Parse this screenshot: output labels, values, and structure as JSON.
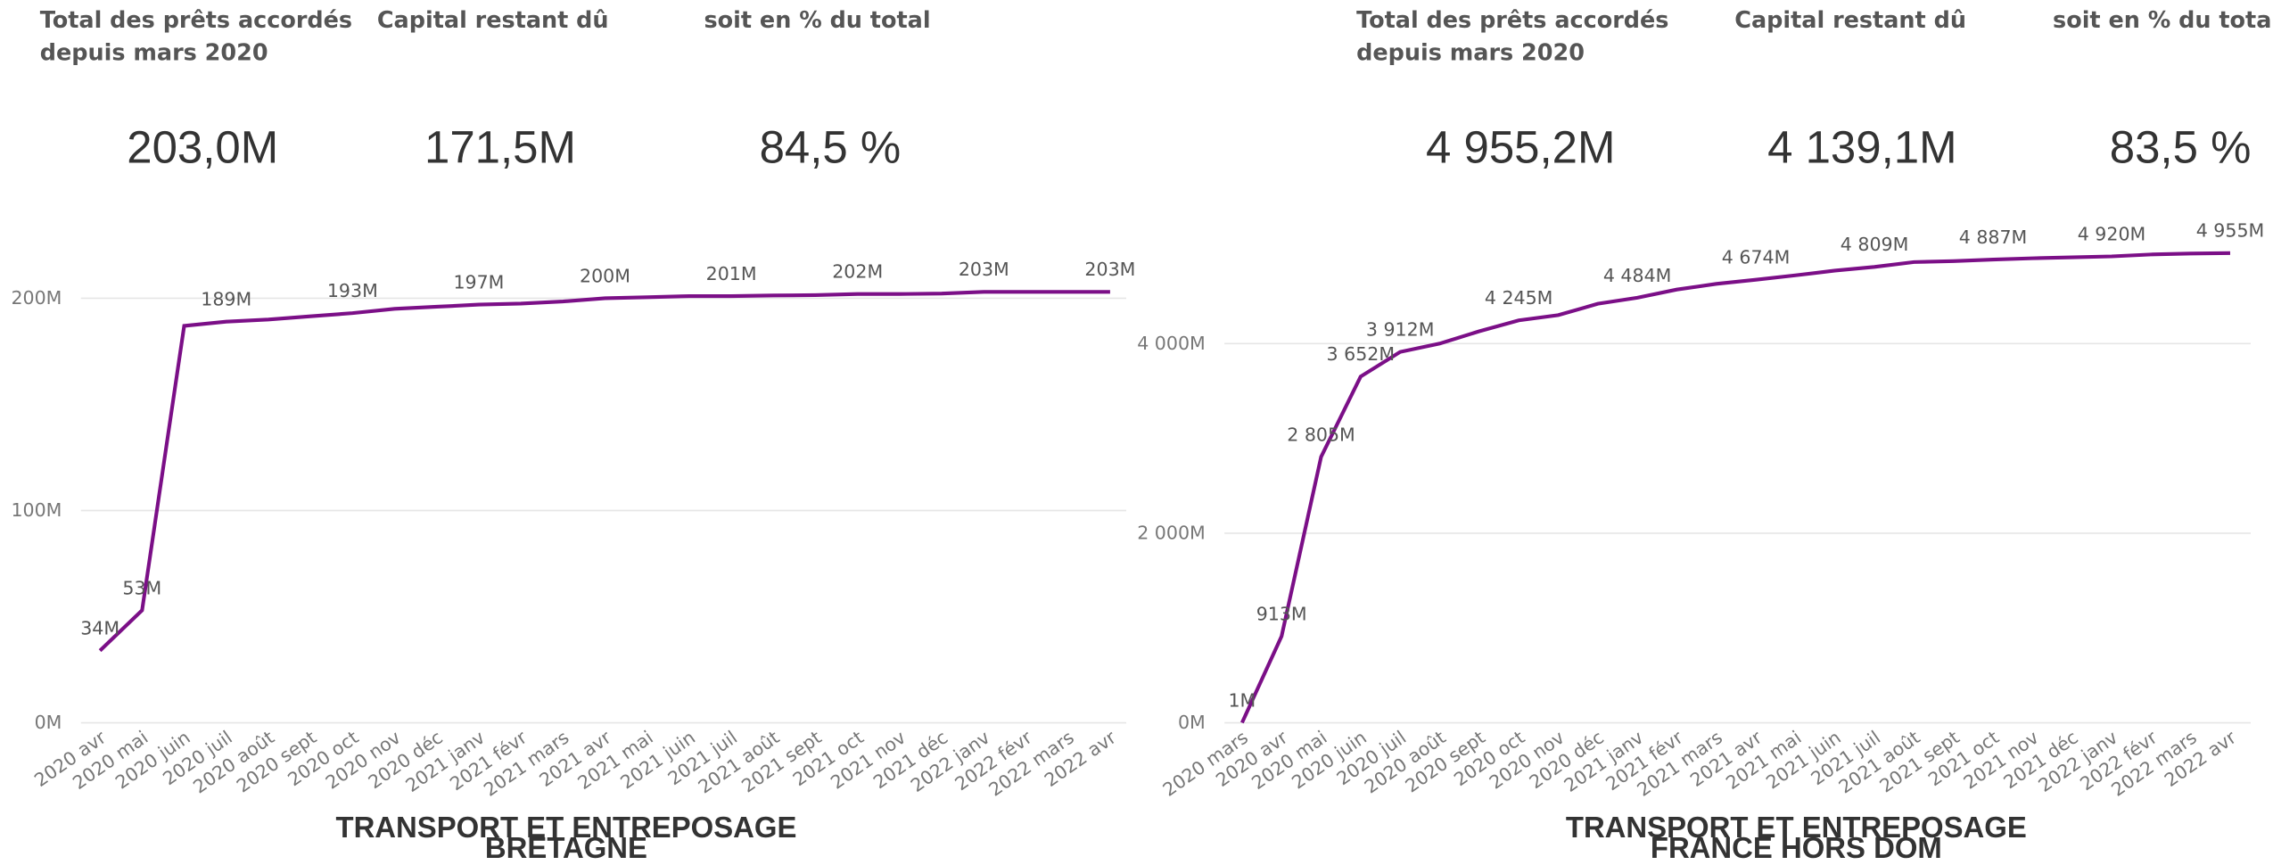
{
  "kpis": [
    [
      {
        "label_lines": [
          "Total des prêts accordés",
          "depuis mars 2020"
        ],
        "value": "203,0M"
      },
      {
        "label_lines": [
          "Capital restant dû"
        ],
        "value": "171,5M"
      },
      {
        "label_lines": [
          "soit en % du total"
        ],
        "value": "84,5 %"
      }
    ],
    [
      {
        "label_lines": [
          "Total des prêts accordés",
          "depuis mars 2020"
        ],
        "value": "4 955,2M"
      },
      {
        "label_lines": [
          "Capital restant dû"
        ],
        "value": "4 139,1M"
      },
      {
        "label_lines": [
          "soit en % du total"
        ],
        "value": "83,5 %"
      }
    ]
  ],
  "chart_data": [
    {
      "type": "line",
      "title": "TRANSPORT ET ENTREPOSAGE",
      "subtitle": "BRETAGNE",
      "color": "#7b0f87",
      "categories": [
        "2020 avr",
        "2020 mai",
        "2020 juin",
        "2020 juil",
        "2020 août",
        "2020 sept",
        "2020 oct",
        "2020 nov",
        "2020 déc",
        "2021 janv",
        "2021 févr",
        "2021 mars",
        "2021 avr",
        "2021 mai",
        "2021 juin",
        "2021 juil",
        "2021 août",
        "2021 sept",
        "2021 oct",
        "2021 nov",
        "2021 déc",
        "2022 janv",
        "2022 févr",
        "2022 mars",
        "2022 avr"
      ],
      "values": [
        34,
        53,
        187,
        189,
        190,
        191.5,
        193,
        195,
        196,
        197,
        197.5,
        198.5,
        200,
        200.5,
        201,
        201,
        201.3,
        201.5,
        202,
        202,
        202.2,
        203,
        203,
        203,
        203
      ],
      "value_labels": [
        "34M",
        "53M",
        null,
        "189M",
        null,
        null,
        "193M",
        null,
        null,
        "197M",
        null,
        null,
        "200M",
        null,
        null,
        "201M",
        null,
        null,
        "202M",
        null,
        null,
        "203M",
        null,
        null,
        "203M"
      ],
      "ylim": [
        0,
        230
      ],
      "yticks": [
        {
          "value": 0,
          "label": "0M"
        },
        {
          "value": 100,
          "label": "100M"
        },
        {
          "value": 200,
          "label": "200M"
        }
      ],
      "grid": true
    },
    {
      "type": "line",
      "title": "TRANSPORT ET ENTREPOSAGE",
      "subtitle": "FRANCE HORS DOM",
      "color": "#7b0f87",
      "categories": [
        "2020 mars",
        "2020 avr",
        "2020 mai",
        "2020 juin",
        "2020 juil",
        "2020 août",
        "2020 sept",
        "2020 oct",
        "2020 nov",
        "2020 déc",
        "2021 janv",
        "2021 févr",
        "2021 mars",
        "2021 avr",
        "2021 mai",
        "2021 juin",
        "2021 juil",
        "2021 août",
        "2021 sept",
        "2021 oct",
        "2021 nov",
        "2021 déc",
        "2022 janv",
        "2022 févr",
        "2022 mars",
        "2022 avr"
      ],
      "values": [
        1,
        913,
        2805,
        3652,
        3912,
        4000,
        4130,
        4245,
        4300,
        4420,
        4484,
        4570,
        4630,
        4674,
        4720,
        4770,
        4809,
        4860,
        4870,
        4887,
        4900,
        4910,
        4920,
        4940,
        4950,
        4955
      ],
      "value_labels": [
        "1M",
        "913M",
        "2 805M",
        "3 652M",
        "3 912M",
        null,
        null,
        "4 245M",
        null,
        null,
        "4 484M",
        null,
        null,
        "4 674M",
        null,
        null,
        "4 809M",
        null,
        null,
        "4 887M",
        null,
        null,
        "4 920M",
        null,
        null,
        "4 955M"
      ],
      "ylim": [
        0,
        5150
      ],
      "yticks": [
        {
          "value": 0,
          "label": "0M"
        },
        {
          "value": 2000,
          "label": "2 000M"
        },
        {
          "value": 4000,
          "label": "4 000M"
        }
      ],
      "grid": true
    }
  ]
}
